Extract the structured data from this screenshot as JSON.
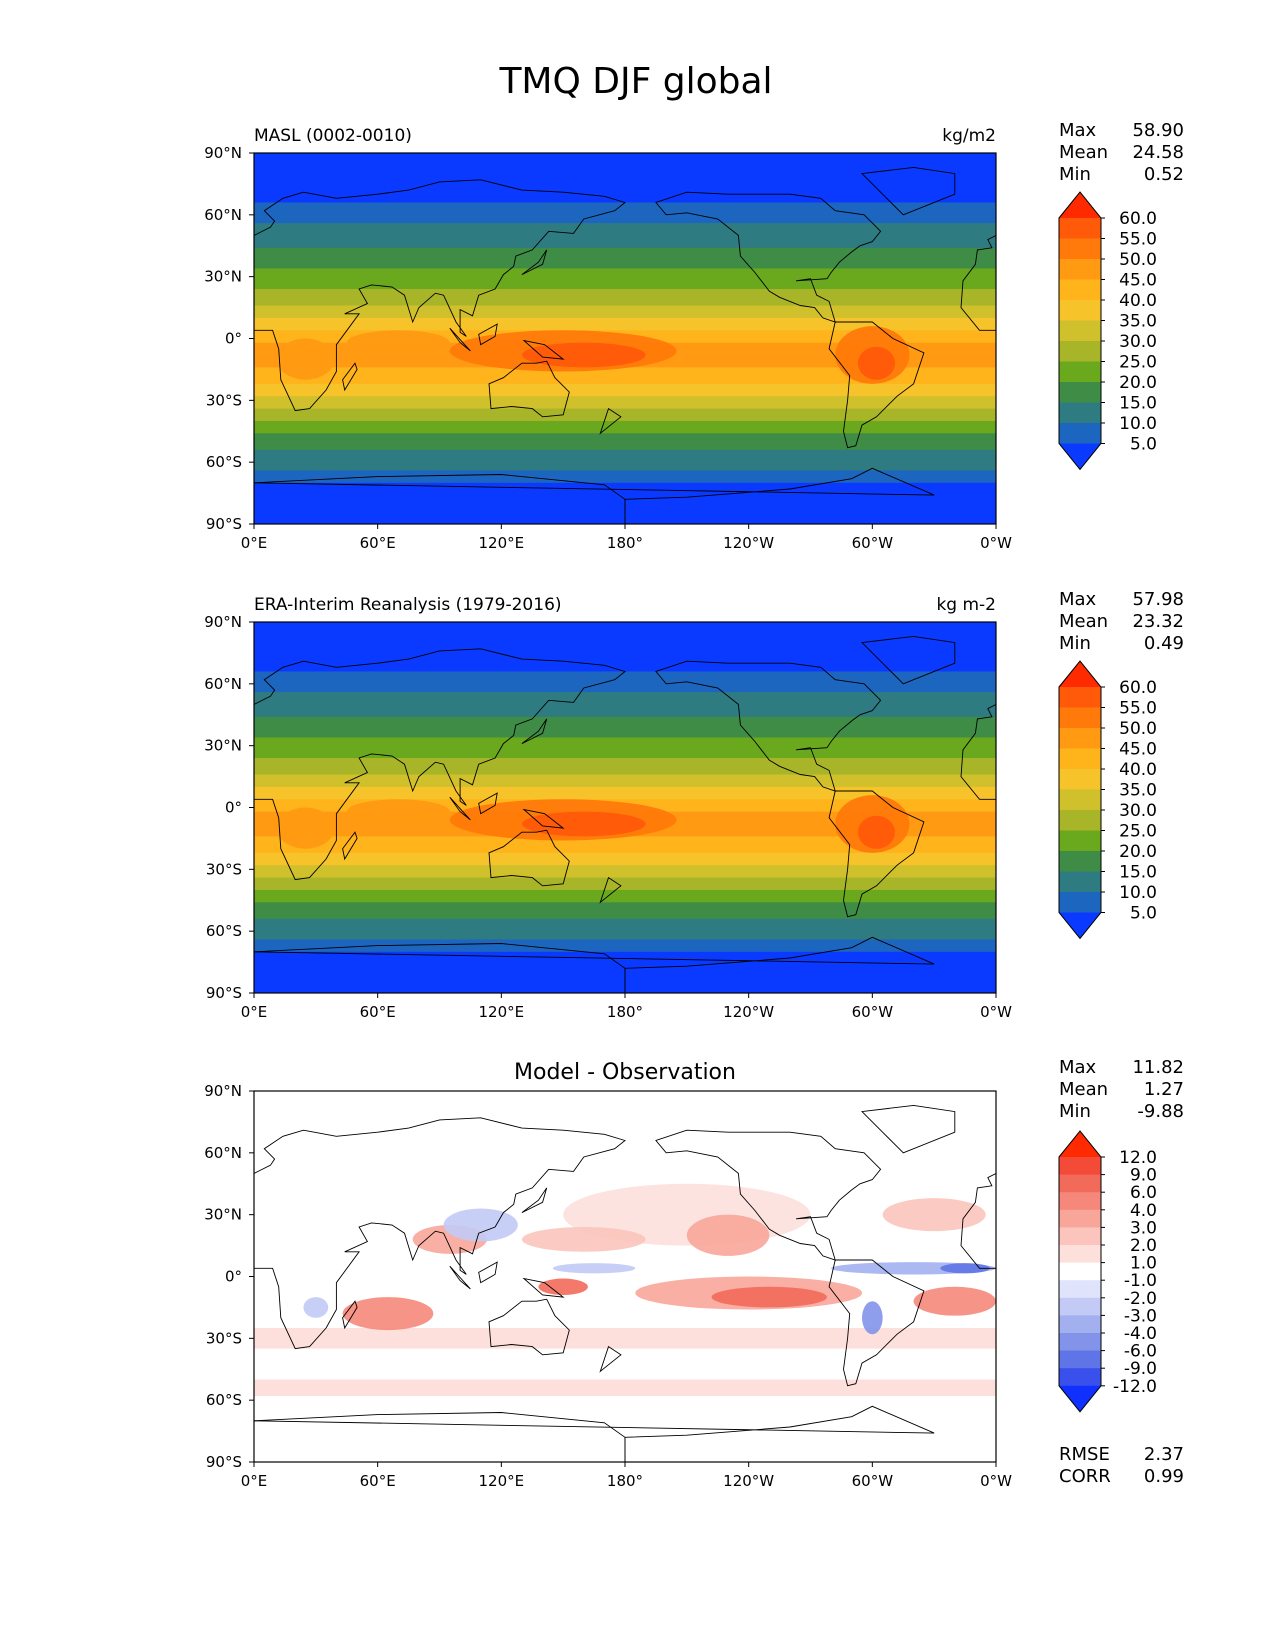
{
  "title": "TMQ DJF global",
  "lon_ticks": [
    "0°E",
    "60°E",
    "120°E",
    "180°",
    "120°W",
    "60°W",
    "0°W"
  ],
  "lat_ticks": [
    "90°N",
    "60°N",
    "30°N",
    "0°",
    "30°S",
    "60°S",
    "90°S"
  ],
  "chart_data": [
    {
      "type": "heatmap",
      "panel": "test",
      "left_title": "MASL (0002-0010)",
      "units": "kg/m2",
      "stats": [
        [
          "Max",
          "58.90"
        ],
        [
          "Mean",
          "24.58"
        ],
        [
          "Min",
          "0.52"
        ]
      ],
      "colorbar_levels": [
        "60.0",
        "55.0",
        "50.0",
        "45.0",
        "40.0",
        "35.0",
        "30.0",
        "25.0",
        "20.0",
        "15.0",
        "10.0",
        "5.0"
      ],
      "colors": [
        "#ff2a00",
        "#ff5a0a",
        "#ff7a0a",
        "#ff9a12",
        "#ffb41c",
        "#f6c42a",
        "#cfc02c",
        "#a8b528",
        "#6aa81e",
        "#3e8c46",
        "#2e7c82",
        "#1d66c0",
        "#0a3aff"
      ],
      "xlim": [
        0,
        360
      ],
      "ylim": [
        -90,
        90
      ]
    },
    {
      "type": "heatmap",
      "panel": "reference",
      "left_title": "ERA-Interim Reanalysis (1979-2016)",
      "units": "kg m-2",
      "stats": [
        [
          "Max",
          "57.98"
        ],
        [
          "Mean",
          "23.32"
        ],
        [
          "Min",
          "0.49"
        ]
      ],
      "colorbar_levels": [
        "60.0",
        "55.0",
        "50.0",
        "45.0",
        "40.0",
        "35.0",
        "30.0",
        "25.0",
        "20.0",
        "15.0",
        "10.0",
        "5.0"
      ],
      "colors": [
        "#ff2a00",
        "#ff5a0a",
        "#ff7a0a",
        "#ff9a12",
        "#ffb41c",
        "#f6c42a",
        "#cfc02c",
        "#a8b528",
        "#6aa81e",
        "#3e8c46",
        "#2e7c82",
        "#1d66c0",
        "#0a3aff"
      ],
      "xlim": [
        0,
        360
      ],
      "ylim": [
        -90,
        90
      ]
    },
    {
      "type": "heatmap",
      "panel": "difference",
      "center_title": "Model - Observation",
      "stats": [
        [
          "Max",
          "11.82"
        ],
        [
          "Mean",
          "1.27"
        ],
        [
          "Min",
          "-9.88"
        ]
      ],
      "colorbar_levels": [
        "12.0",
        "9.0",
        "6.0",
        "4.0",
        "3.0",
        "2.0",
        "1.0",
        "-1.0",
        "-2.0",
        "-3.0",
        "-4.0",
        "-6.0",
        "-9.0",
        "-12.0"
      ],
      "colors": [
        "#ff2a00",
        "#f44a38",
        "#f26a5a",
        "#f5887a",
        "#f8a69a",
        "#fbc4bc",
        "#fde0dc",
        "#ffffff",
        "#dfe3fb",
        "#c2caf5",
        "#a3b0ef",
        "#8393ea",
        "#5f74e6",
        "#3a50ec",
        "#1030ff"
      ],
      "metrics": [
        [
          "RMSE",
          "2.37"
        ],
        [
          "CORR",
          "0.99"
        ]
      ],
      "xlim": [
        0,
        360
      ],
      "ylim": [
        -90,
        90
      ]
    }
  ]
}
